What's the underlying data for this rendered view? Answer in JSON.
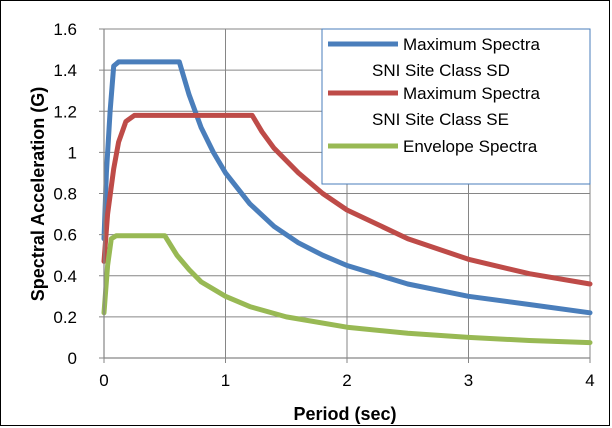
{
  "chart_data": {
    "type": "line",
    "xlabel": "Period (sec)",
    "ylabel": "Spectral Acceleration (G)",
    "xlim": [
      0,
      4
    ],
    "ylim": [
      0,
      1.6
    ],
    "xticks": [
      "0",
      "1",
      "2",
      "3",
      "4"
    ],
    "yticks": [
      "0",
      "0.2",
      "0.4",
      "0.6",
      "0.8",
      "1",
      "1.2",
      "1.4",
      "1.6"
    ],
    "grid": true,
    "legend_position": "top-right",
    "series": [
      {
        "name": "Maximum Spectra SNI Site Class SD",
        "color": "#4a7ebb",
        "x": [
          0,
          0.02,
          0.05,
          0.08,
          0.12,
          0.2,
          0.3,
          0.4,
          0.5,
          0.6,
          0.62,
          0.7,
          0.8,
          0.9,
          1.0,
          1.2,
          1.4,
          1.6,
          1.8,
          2.0,
          2.5,
          3.0,
          3.5,
          4.0
        ],
        "y": [
          0.58,
          0.9,
          1.2,
          1.42,
          1.44,
          1.44,
          1.44,
          1.44,
          1.44,
          1.44,
          1.44,
          1.28,
          1.12,
          1.0,
          0.9,
          0.75,
          0.64,
          0.56,
          0.5,
          0.45,
          0.36,
          0.3,
          0.26,
          0.22
        ]
      },
      {
        "name": "Maximum Spectra SNI Site Class SE",
        "color": "#be4b48",
        "x": [
          0,
          0.03,
          0.08,
          0.12,
          0.18,
          0.25,
          0.4,
          0.6,
          0.8,
          1.0,
          1.2,
          1.22,
          1.3,
          1.4,
          1.6,
          1.8,
          2.0,
          2.5,
          3.0,
          3.5,
          4.0
        ],
        "y": [
          0.47,
          0.7,
          0.92,
          1.05,
          1.15,
          1.18,
          1.18,
          1.18,
          1.18,
          1.18,
          1.18,
          1.18,
          1.1,
          1.02,
          0.9,
          0.8,
          0.72,
          0.58,
          0.48,
          0.41,
          0.36
        ]
      },
      {
        "name": "Envelope Spectra",
        "color": "#98b954",
        "x": [
          0,
          0.03,
          0.06,
          0.1,
          0.2,
          0.3,
          0.4,
          0.5,
          0.6,
          0.7,
          0.8,
          1.0,
          1.2,
          1.5,
          2.0,
          2.5,
          3.0,
          3.5,
          4.0
        ],
        "y": [
          0.22,
          0.45,
          0.58,
          0.595,
          0.595,
          0.595,
          0.595,
          0.595,
          0.5,
          0.43,
          0.37,
          0.3,
          0.25,
          0.2,
          0.15,
          0.12,
          0.1,
          0.085,
          0.075
        ]
      }
    ]
  },
  "legend": {
    "items": [
      {
        "line1": "Maximum Spectra",
        "line2": "SNI Site Class SD",
        "color": "#4a7ebb"
      },
      {
        "line1": "Maximum Spectra",
        "line2": "SNI Site Class SE",
        "color": "#be4b48"
      },
      {
        "line1": "Envelope Spectra",
        "line2": "",
        "color": "#98b954"
      }
    ]
  }
}
